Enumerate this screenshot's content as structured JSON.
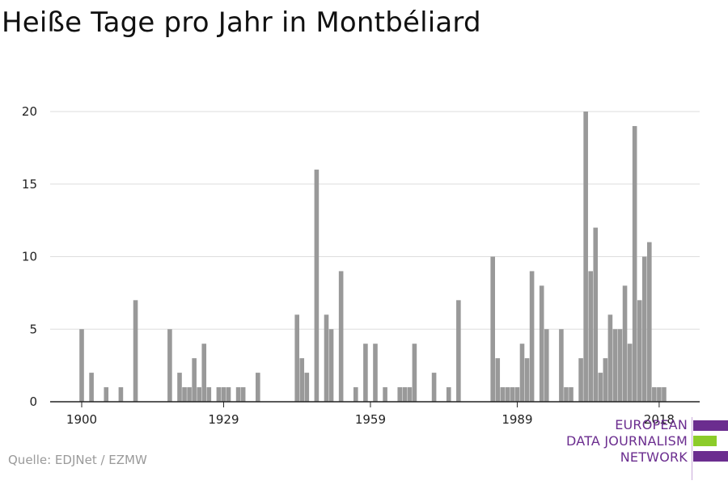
{
  "title": "Heiße Tage pro Jahr in Montbéliard",
  "source": "Quelle: EDJNet / EZMW",
  "logo": {
    "line1": "EUROPEAN",
    "line2": "DATA JOURNALISM",
    "line3": "NETWORK",
    "purple": "#6b2d8f",
    "green": "#8ccc2a"
  },
  "colors": {
    "bar": "#999999",
    "grid": "#dddddd",
    "axis": "#222222"
  },
  "chart_data": {
    "type": "bar",
    "title": "Heiße Tage pro Jahr in Montbéliard",
    "xlabel": "",
    "ylabel": "",
    "xlim": [
      1900,
      2021
    ],
    "ylim": [
      0,
      20
    ],
    "yticks": [
      0,
      5,
      10,
      15,
      20
    ],
    "xticks": [
      1900,
      1929,
      1959,
      1989,
      2018
    ],
    "grid": true,
    "x": [
      1900,
      1902,
      1905,
      1908,
      1911,
      1918,
      1920,
      1921,
      1922,
      1923,
      1924,
      1925,
      1926,
      1928,
      1929,
      1930,
      1932,
      1933,
      1936,
      1944,
      1945,
      1946,
      1948,
      1950,
      1951,
      1953,
      1956,
      1958,
      1960,
      1962,
      1965,
      1966,
      1967,
      1968,
      1972,
      1975,
      1977,
      1984,
      1985,
      1986,
      1987,
      1988,
      1989,
      1990,
      1991,
      1992,
      1994,
      1995,
      1998,
      1999,
      2000,
      2002,
      2003,
      2004,
      2005,
      2006,
      2007,
      2008,
      2009,
      2010,
      2011,
      2012,
      2013,
      2014,
      2015,
      2016,
      2017,
      2018,
      2019
    ],
    "values": [
      5,
      2,
      1,
      1,
      7,
      5,
      2,
      1,
      1,
      3,
      1,
      4,
      1,
      1,
      1,
      1,
      1,
      1,
      2,
      6,
      3,
      2,
      16,
      6,
      5,
      9,
      1,
      4,
      4,
      1,
      1,
      1,
      1,
      4,
      2,
      1,
      7,
      10,
      3,
      1,
      1,
      1,
      1,
      4,
      3,
      9,
      8,
      5,
      5,
      1,
      1,
      3,
      20,
      9,
      12,
      2,
      3,
      6,
      5,
      5,
      8,
      4,
      19,
      7,
      10,
      11,
      1,
      1,
      1
    ]
  }
}
